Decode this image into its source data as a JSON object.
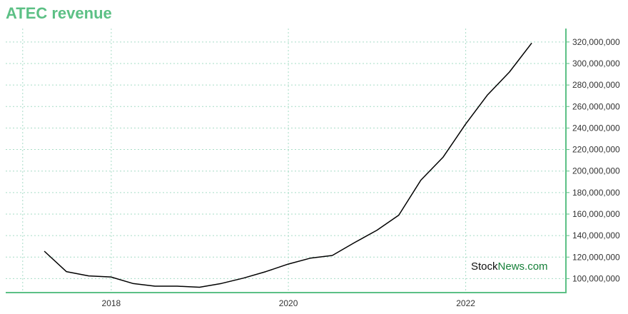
{
  "title": "ATEC revenue",
  "watermark": {
    "part1": "Stock",
    "part2": "News",
    "part3": ".com"
  },
  "colors": {
    "title": "#5cc085",
    "axis": "#5cc085",
    "grid": "#a6dcc6",
    "line": "#000000",
    "watermark_accent": "#17803a"
  },
  "chart_data": {
    "type": "line",
    "title": "ATEC revenue",
    "xlabel": "",
    "ylabel": "",
    "grid": true,
    "x_ticks": [
      "2018",
      "2020",
      "2022"
    ],
    "y_ticks": [
      100000000,
      120000000,
      140000000,
      160000000,
      180000000,
      200000000,
      220000000,
      240000000,
      260000000,
      280000000,
      300000000,
      320000000
    ],
    "y_tick_labels": [
      "100,000,000",
      "120,000,000",
      "140,000,000",
      "160,000,000",
      "180,000,000",
      "200,000,000",
      "220,000,000",
      "240,000,000",
      "260,000,000",
      "280,000,000",
      "300,000,000",
      "320,000,000"
    ],
    "xlim": [
      "2016-10-23",
      "2023-02-18"
    ],
    "ylim": [
      87000000,
      332500000
    ],
    "x": [
      "2017-03-31",
      "2017-06-30",
      "2017-09-30",
      "2017-12-31",
      "2018-03-31",
      "2018-06-30",
      "2018-09-30",
      "2018-12-31",
      "2019-03-31",
      "2019-06-30",
      "2019-09-30",
      "2019-12-31",
      "2020-03-31",
      "2020-06-30",
      "2020-09-30",
      "2020-12-31",
      "2021-03-31",
      "2021-06-30",
      "2021-09-30",
      "2021-12-31",
      "2022-03-31",
      "2022-06-30",
      "2022-09-30"
    ],
    "series": [
      {
        "values": [
          125500000,
          106500000,
          102500000,
          101500000,
          95500000,
          93000000,
          93000000,
          92000000,
          95500000,
          100500000,
          106500000,
          113500000,
          119000000,
          121500000,
          133500000,
          145000000,
          159000000,
          191500000,
          213000000,
          243500000,
          270500000,
          292000000,
          319000000
        ]
      }
    ]
  }
}
